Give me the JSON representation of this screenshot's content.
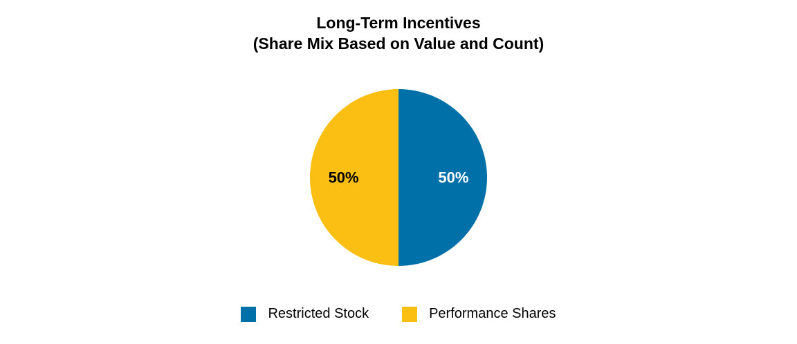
{
  "chart_data": {
    "type": "pie",
    "title": [
      "Long-Term Incentives",
      "(Share Mix Based on Value and Count)"
    ],
    "slices": [
      {
        "name": "Restricted Stock",
        "value": 50,
        "label": "50%",
        "color": "#0070A8",
        "label_color": "#FFFFFF"
      },
      {
        "name": "Performance Shares",
        "value": 50,
        "label": "50%",
        "color": "#FBBE12",
        "label_color": "#000000"
      }
    ],
    "legend": {
      "position": "bottom"
    }
  }
}
